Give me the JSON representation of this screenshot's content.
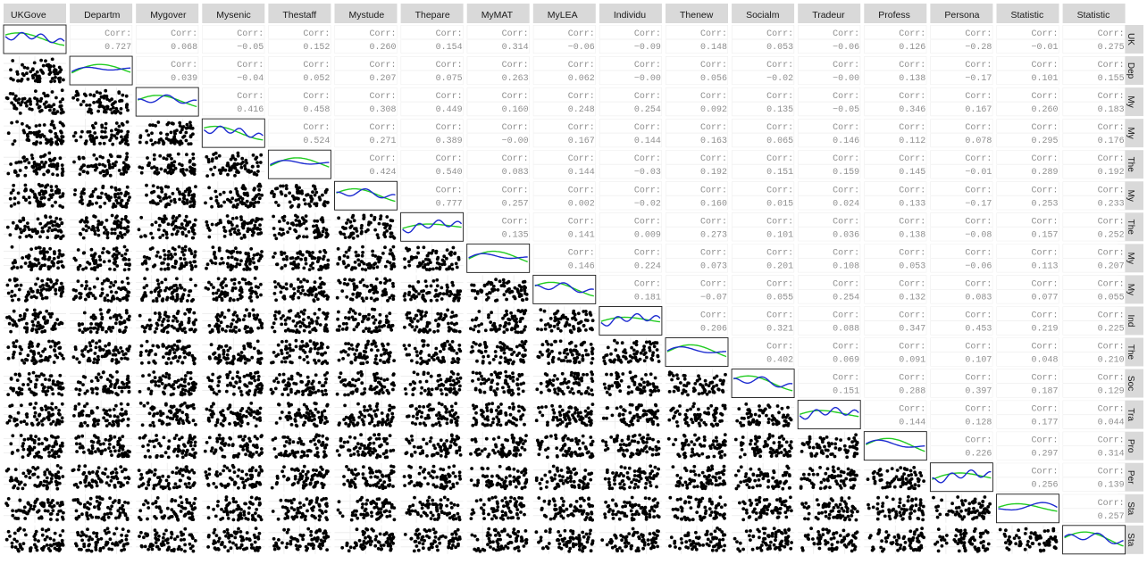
{
  "chart_data": {
    "type": "scatter-matrix",
    "title": "",
    "variables": [
      "UKGove",
      "Departm",
      "Mygover",
      "Mysenic",
      "Thestaff",
      "Mystude",
      "Thepare",
      "MyMAT",
      "MyLEA",
      "Individu",
      "Thenew",
      "Socialm",
      "Tradeur",
      "Profess",
      "Persona",
      "Statistic",
      "Statistic"
    ],
    "row_labels": [
      "UK",
      "Dep",
      "My",
      "My",
      "The",
      "My",
      "The",
      "My",
      "My",
      "Ind",
      "The",
      "Soc",
      "Tra",
      "Pro",
      "Per",
      "Sta",
      "Sta"
    ],
    "corr_label": "Corr:",
    "correlations": [
      [
        "0.727",
        "0.068",
        "−0.05",
        "0.152",
        "0.260",
        "0.154",
        "0.314",
        "−0.06",
        "−0.09",
        "0.148",
        "0.053",
        "−0.06",
        "0.126",
        "−0.28",
        "−0.01",
        "0.275"
      ],
      [
        "0.039",
        "−0.04",
        "0.052",
        "0.207",
        "0.075",
        "0.263",
        "0.062",
        "−0.00",
        "0.056",
        "−0.02",
        "−0.00",
        "0.138",
        "−0.17",
        "0.101",
        "0.155"
      ],
      [
        "0.416",
        "0.458",
        "0.308",
        "0.449",
        "0.160",
        "0.248",
        "0.254",
        "0.092",
        "0.135",
        "−0.05",
        "0.346",
        "0.167",
        "0.260",
        "0.183"
      ],
      [
        "0.524",
        "0.271",
        "0.389",
        "−0.00",
        "0.167",
        "0.144",
        "0.163",
        "0.065",
        "0.146",
        "0.112",
        "0.078",
        "0.295",
        "0.176"
      ],
      [
        "0.424",
        "0.540",
        "0.083",
        "0.144",
        "−0.03",
        "0.192",
        "0.151",
        "0.159",
        "0.145",
        "−0.01",
        "0.289",
        "0.192"
      ],
      [
        "0.777",
        "0.257",
        "0.002",
        "−0.02",
        "0.160",
        "0.015",
        "0.024",
        "0.133",
        "−0.17",
        "0.253",
        "0.233"
      ],
      [
        "0.135",
        "0.141",
        "0.009",
        "0.273",
        "0.101",
        "0.036",
        "0.138",
        "−0.08",
        "0.157",
        "0.252"
      ],
      [
        "0.146",
        "0.224",
        "0.073",
        "0.201",
        "0.108",
        "0.053",
        "−0.06",
        "0.113",
        "0.207"
      ],
      [
        "0.181",
        "−0.07",
        "0.055",
        "0.254",
        "0.132",
        "0.083",
        "0.077",
        "0.055"
      ],
      [
        "0.206",
        "0.321",
        "0.088",
        "0.347",
        "0.453",
        "0.219",
        "0.225"
      ],
      [
        "0.402",
        "0.069",
        "0.091",
        "0.107",
        "0.048",
        "0.210"
      ],
      [
        "0.151",
        "0.288",
        "0.397",
        "0.187",
        "0.129"
      ],
      [
        "0.144",
        "0.128",
        "0.177",
        "0.044"
      ],
      [
        "0.226",
        "0.297",
        "0.314"
      ],
      [
        "0.256",
        "0.139"
      ],
      [
        "0.257"
      ],
      []
    ],
    "diagonal": "density curves (blue and green) per variable",
    "lower": "scatter plots of variable pairs",
    "colors": {
      "line_a": "#1c2bd0",
      "line_b": "#22cc22",
      "points": "#000000",
      "strip_bg": "#d9d9d9",
      "corr_text": "#8f8f8f",
      "grid": "#ebebeb"
    }
  }
}
